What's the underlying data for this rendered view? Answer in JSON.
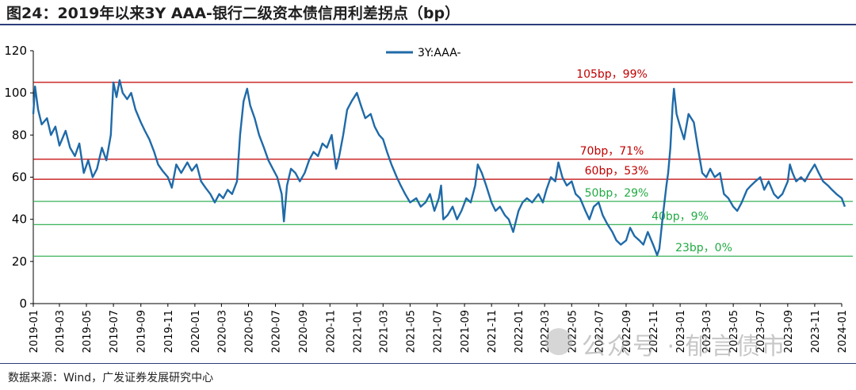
{
  "figure": {
    "title": "图24：2019年以来3Y AAA-银行二级资本债信用利差拐点（bp）",
    "source": "数据来源：Wind，广发证券发展研究中心",
    "watermark_text": "公众号 · 郁言债市"
  },
  "chart_data": {
    "type": "line",
    "title": "",
    "xlabel": "",
    "ylabel": "",
    "ylim": [
      0,
      120
    ],
    "yticks": [
      0,
      20,
      40,
      60,
      80,
      100,
      120
    ],
    "x_range": [
      "2019-01",
      "2024-01"
    ],
    "xticks": [
      "2019-01",
      "2019-03",
      "2019-05",
      "2019-07",
      "2019-09",
      "2019-11",
      "2020-01",
      "2020-03",
      "2020-05",
      "2020-07",
      "2020-09",
      "2020-11",
      "2021-01",
      "2021-03",
      "2021-05",
      "2021-07",
      "2021-09",
      "2021-11",
      "2022-01",
      "2022-03",
      "2022-05",
      "2022-07",
      "2022-09",
      "2022-11",
      "2023-01",
      "2023-03",
      "2023-05",
      "2023-07",
      "2023-09",
      "2023-11",
      "2024-01"
    ],
    "grid": false,
    "legend": "top-center",
    "line_color": "#1f6aa8",
    "series": [
      {
        "name": "3Y:AAA-",
        "points": [
          [
            "2019-01-01",
            90
          ],
          [
            "2019-01-05",
            103
          ],
          [
            "2019-01-12",
            92
          ],
          [
            "2019-01-20",
            85
          ],
          [
            "2019-02-01",
            88
          ],
          [
            "2019-02-10",
            80
          ],
          [
            "2019-02-20",
            84
          ],
          [
            "2019-03-01",
            75
          ],
          [
            "2019-03-15",
            82
          ],
          [
            "2019-03-25",
            74
          ],
          [
            "2019-04-05",
            70
          ],
          [
            "2019-04-15",
            76
          ],
          [
            "2019-04-25",
            62
          ],
          [
            "2019-05-05",
            68
          ],
          [
            "2019-05-15",
            60
          ],
          [
            "2019-05-25",
            64
          ],
          [
            "2019-06-05",
            74
          ],
          [
            "2019-06-15",
            68
          ],
          [
            "2019-06-25",
            80
          ],
          [
            "2019-07-01",
            105
          ],
          [
            "2019-07-08",
            98
          ],
          [
            "2019-07-15",
            106
          ],
          [
            "2019-07-22",
            100
          ],
          [
            "2019-08-01",
            97
          ],
          [
            "2019-08-10",
            100
          ],
          [
            "2019-08-20",
            92
          ],
          [
            "2019-09-01",
            86
          ],
          [
            "2019-09-10",
            82
          ],
          [
            "2019-09-20",
            78
          ],
          [
            "2019-10-01",
            72
          ],
          [
            "2019-10-10",
            66
          ],
          [
            "2019-10-20",
            63
          ],
          [
            "2019-11-01",
            60
          ],
          [
            "2019-11-10",
            55
          ],
          [
            "2019-11-20",
            66
          ],
          [
            "2019-12-01",
            62
          ],
          [
            "2019-12-15",
            67
          ],
          [
            "2019-12-25",
            63
          ],
          [
            "2020-01-05",
            66
          ],
          [
            "2020-01-15",
            58
          ],
          [
            "2020-01-25",
            55
          ],
          [
            "2020-02-05",
            52
          ],
          [
            "2020-02-15",
            48
          ],
          [
            "2020-02-25",
            52
          ],
          [
            "2020-03-05",
            50
          ],
          [
            "2020-03-15",
            54
          ],
          [
            "2020-03-25",
            52
          ],
          [
            "2020-04-05",
            58
          ],
          [
            "2020-04-12",
            80
          ],
          [
            "2020-04-20",
            96
          ],
          [
            "2020-04-28",
            102
          ],
          [
            "2020-05-05",
            94
          ],
          [
            "2020-05-15",
            88
          ],
          [
            "2020-05-25",
            80
          ],
          [
            "2020-06-05",
            74
          ],
          [
            "2020-06-15",
            68
          ],
          [
            "2020-06-25",
            64
          ],
          [
            "2020-07-05",
            60
          ],
          [
            "2020-07-15",
            52
          ],
          [
            "2020-07-20",
            39
          ],
          [
            "2020-07-27",
            56
          ],
          [
            "2020-08-05",
            64
          ],
          [
            "2020-08-15",
            62
          ],
          [
            "2020-08-25",
            58
          ],
          [
            "2020-09-05",
            62
          ],
          [
            "2020-09-15",
            68
          ],
          [
            "2020-09-25",
            72
          ],
          [
            "2020-10-05",
            70
          ],
          [
            "2020-10-15",
            76
          ],
          [
            "2020-10-25",
            74
          ],
          [
            "2020-11-05",
            80
          ],
          [
            "2020-11-15",
            64
          ],
          [
            "2020-11-22",
            70
          ],
          [
            "2020-12-01",
            80
          ],
          [
            "2020-12-10",
            92
          ],
          [
            "2020-12-20",
            96
          ],
          [
            "2021-01-01",
            100
          ],
          [
            "2021-01-10",
            94
          ],
          [
            "2021-01-20",
            88
          ],
          [
            "2021-02-01",
            90
          ],
          [
            "2021-02-10",
            84
          ],
          [
            "2021-02-20",
            80
          ],
          [
            "2021-03-01",
            78
          ],
          [
            "2021-03-10",
            72
          ],
          [
            "2021-03-20",
            66
          ],
          [
            "2021-04-01",
            60
          ],
          [
            "2021-04-10",
            56
          ],
          [
            "2021-04-20",
            52
          ],
          [
            "2021-05-01",
            48
          ],
          [
            "2021-05-15",
            50
          ],
          [
            "2021-05-25",
            46
          ],
          [
            "2021-06-05",
            48
          ],
          [
            "2021-06-15",
            52
          ],
          [
            "2021-06-25",
            44
          ],
          [
            "2021-07-05",
            50
          ],
          [
            "2021-07-10",
            56
          ],
          [
            "2021-07-15",
            40
          ],
          [
            "2021-07-25",
            42
          ],
          [
            "2021-08-05",
            46
          ],
          [
            "2021-08-15",
            40
          ],
          [
            "2021-08-25",
            44
          ],
          [
            "2021-09-05",
            50
          ],
          [
            "2021-09-15",
            48
          ],
          [
            "2021-09-25",
            56
          ],
          [
            "2021-10-01",
            66
          ],
          [
            "2021-10-10",
            62
          ],
          [
            "2021-10-20",
            56
          ],
          [
            "2021-11-01",
            48
          ],
          [
            "2021-11-10",
            44
          ],
          [
            "2021-11-20",
            46
          ],
          [
            "2021-12-01",
            42
          ],
          [
            "2021-12-10",
            40
          ],
          [
            "2021-12-20",
            34
          ],
          [
            "2022-01-01",
            44
          ],
          [
            "2022-01-10",
            48
          ],
          [
            "2022-01-20",
            50
          ],
          [
            "2022-02-01",
            48
          ],
          [
            "2022-02-15",
            52
          ],
          [
            "2022-02-25",
            48
          ],
          [
            "2022-03-05",
            54
          ],
          [
            "2022-03-15",
            60
          ],
          [
            "2022-03-25",
            58
          ],
          [
            "2022-04-01",
            67
          ],
          [
            "2022-04-10",
            60
          ],
          [
            "2022-04-20",
            56
          ],
          [
            "2022-05-01",
            58
          ],
          [
            "2022-05-10",
            52
          ],
          [
            "2022-05-20",
            50
          ],
          [
            "2022-06-01",
            44
          ],
          [
            "2022-06-10",
            40
          ],
          [
            "2022-06-20",
            46
          ],
          [
            "2022-07-01",
            48
          ],
          [
            "2022-07-10",
            42
          ],
          [
            "2022-07-20",
            38
          ],
          [
            "2022-08-01",
            34
          ],
          [
            "2022-08-10",
            30
          ],
          [
            "2022-08-20",
            28
          ],
          [
            "2022-09-01",
            30
          ],
          [
            "2022-09-10",
            36
          ],
          [
            "2022-09-20",
            32
          ],
          [
            "2022-10-01",
            30
          ],
          [
            "2022-10-10",
            28
          ],
          [
            "2022-10-20",
            34
          ],
          [
            "2022-11-01",
            28
          ],
          [
            "2022-11-10",
            23
          ],
          [
            "2022-11-15",
            26
          ],
          [
            "2022-11-22",
            40
          ],
          [
            "2022-12-01",
            56
          ],
          [
            "2022-12-05",
            62
          ],
          [
            "2022-12-10",
            74
          ],
          [
            "2022-12-15",
            94
          ],
          [
            "2022-12-18",
            102
          ],
          [
            "2022-12-24",
            90
          ],
          [
            "2023-01-01",
            84
          ],
          [
            "2023-01-10",
            78
          ],
          [
            "2023-01-20",
            90
          ],
          [
            "2023-02-01",
            86
          ],
          [
            "2023-02-10",
            74
          ],
          [
            "2023-02-20",
            62
          ],
          [
            "2023-03-01",
            60
          ],
          [
            "2023-03-10",
            64
          ],
          [
            "2023-03-20",
            60
          ],
          [
            "2023-04-01",
            62
          ],
          [
            "2023-04-10",
            52
          ],
          [
            "2023-04-20",
            50
          ],
          [
            "2023-05-01",
            46
          ],
          [
            "2023-05-10",
            44
          ],
          [
            "2023-05-20",
            48
          ],
          [
            "2023-06-01",
            54
          ],
          [
            "2023-06-10",
            56
          ],
          [
            "2023-06-20",
            58
          ],
          [
            "2023-07-01",
            60
          ],
          [
            "2023-07-10",
            54
          ],
          [
            "2023-07-20",
            58
          ],
          [
            "2023-08-01",
            52
          ],
          [
            "2023-08-10",
            50
          ],
          [
            "2023-08-20",
            52
          ],
          [
            "2023-09-01",
            58
          ],
          [
            "2023-09-06",
            66
          ],
          [
            "2023-09-12",
            62
          ],
          [
            "2023-09-20",
            58
          ],
          [
            "2023-10-01",
            60
          ],
          [
            "2023-10-10",
            58
          ],
          [
            "2023-10-20",
            62
          ],
          [
            "2023-11-01",
            66
          ],
          [
            "2023-11-10",
            62
          ],
          [
            "2023-11-20",
            58
          ],
          [
            "2023-12-01",
            56
          ],
          [
            "2023-12-10",
            54
          ],
          [
            "2023-12-20",
            52
          ],
          [
            "2024-01-01",
            50
          ],
          [
            "2024-01-08",
            46
          ]
        ]
      }
    ],
    "reference_lines": [
      {
        "value": 105,
        "label": "105bp，99%",
        "color": "#c00000"
      },
      {
        "value": 68.5,
        "label": "70bp，71%",
        "color": "#c00000"
      },
      {
        "value": 59,
        "label": "60bp，53%",
        "color": "#c00000"
      },
      {
        "value": 48.5,
        "label": "50bp，29%",
        "color": "#22aa44"
      },
      {
        "value": 37.5,
        "label": "40bp，9%",
        "color": "#22aa44"
      },
      {
        "value": 22.5,
        "label": "23bp，0%",
        "color": "#22aa44"
      }
    ]
  }
}
